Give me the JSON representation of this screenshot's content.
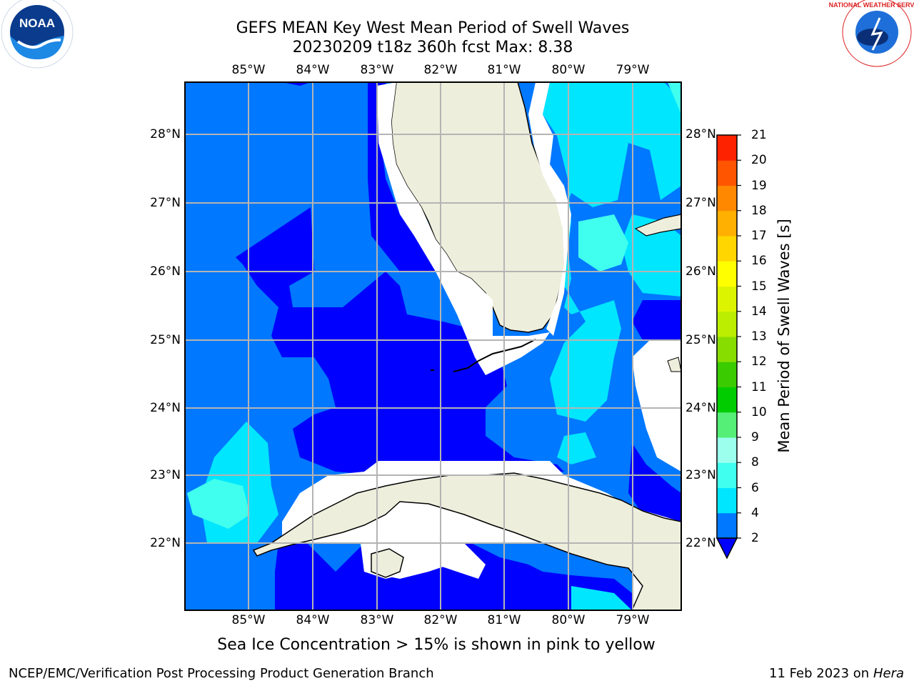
{
  "title": {
    "line1": "GEFS MEAN Key West Mean Period of Swell Waves",
    "line2": "20230209 t18z 360h fcst   Max: 8.38"
  },
  "longitude_ticks": [
    "85°W",
    "84°W",
    "83°W",
    "82°W",
    "81°W",
    "80°W",
    "79°W"
  ],
  "latitude_ticks": [
    "28°N",
    "27°N",
    "26°N",
    "25°N",
    "24°N",
    "23°N",
    "22°N"
  ],
  "colorbar": {
    "label": "Mean Period of Swell Waves [s]",
    "ticks": [
      "2",
      "4",
      "6",
      "8",
      "9",
      "10",
      "11",
      "12",
      "13",
      "14",
      "15",
      "16",
      "17",
      "18",
      "19",
      "20",
      "21"
    ],
    "colors": [
      "#0000ff",
      "#0078ff",
      "#00e6ff",
      "#40ffee",
      "#9cffee",
      "#55ee77",
      "#00cc00",
      "#3acc00",
      "#88dd00",
      "#bbee00",
      "#ddf400",
      "#ffff00",
      "#ffd600",
      "#ffb000",
      "#ff8800",
      "#ff5500",
      "#ff2200",
      "#ff0000"
    ]
  },
  "caption": "Sea Ice Concentration > 15% is shown in pink to yellow",
  "credit": "NCEP/EMC/Verification Post Processing Product Generation Branch",
  "datestamp": {
    "date": "11 Feb 2023 on",
    "host": "Hera"
  },
  "logos": {
    "left": "NOAA",
    "right": "NATIONAL WEATHER SERVICE"
  },
  "colors": {
    "land": "#eeeedd",
    "deep_blue": "#0000ff",
    "mid_blue": "#0078ff",
    "cyan": "#00e6ff",
    "light_cyan": "#40ffee",
    "grid": "#b4b4b4"
  }
}
